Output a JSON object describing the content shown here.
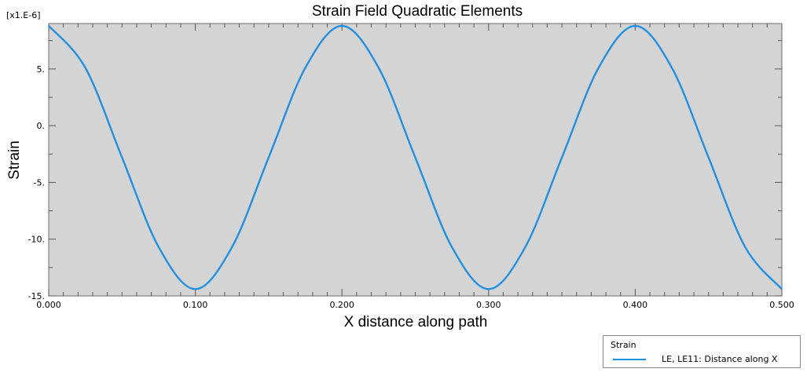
{
  "chart_data": {
    "type": "line",
    "title": "Strain Field Quadratic Elements",
    "xlabel": "X distance along path",
    "ylabel": "Strain",
    "y_multiplier_label": "[x1.E-6]",
    "xlim": [
      0.0,
      0.5
    ],
    "ylim": [
      -15,
      9
    ],
    "x_ticks": [
      {
        "value": 0.0,
        "label": "0.000"
      },
      {
        "value": 0.1,
        "label": "0.100"
      },
      {
        "value": 0.2,
        "label": "0.200"
      },
      {
        "value": 0.3,
        "label": "0.300"
      },
      {
        "value": 0.4,
        "label": "0.400"
      },
      {
        "value": 0.5,
        "label": "0.500"
      }
    ],
    "y_ticks": [
      {
        "value": 5,
        "label": "5."
      },
      {
        "value": 0,
        "label": "0."
      },
      {
        "value": -5,
        "label": "-5."
      },
      {
        "value": -10,
        "label": "-10."
      },
      {
        "value": -15,
        "label": "-15."
      }
    ],
    "grid": false,
    "background_color": "#d4d4d4",
    "line_color": "#1e90e6",
    "legend": {
      "position": "bottom-right",
      "title": "Strain"
    },
    "series": [
      {
        "name": "LE, LE11: Distance along X",
        "x": [
          0.0,
          0.025,
          0.05,
          0.075,
          0.1,
          0.125,
          0.15,
          0.175,
          0.2,
          0.225,
          0.25,
          0.275,
          0.3,
          0.325,
          0.35,
          0.375,
          0.4,
          0.425,
          0.45,
          0.475,
          0.5
        ],
        "values": [
          8.8,
          5.1,
          -2.8,
          -10.7,
          -14.4,
          -10.7,
          -2.8,
          5.1,
          8.8,
          5.1,
          -2.8,
          -10.7,
          -14.4,
          -10.7,
          -2.8,
          5.1,
          8.8,
          5.1,
          -2.8,
          -10.7,
          -14.4
        ]
      }
    ]
  }
}
